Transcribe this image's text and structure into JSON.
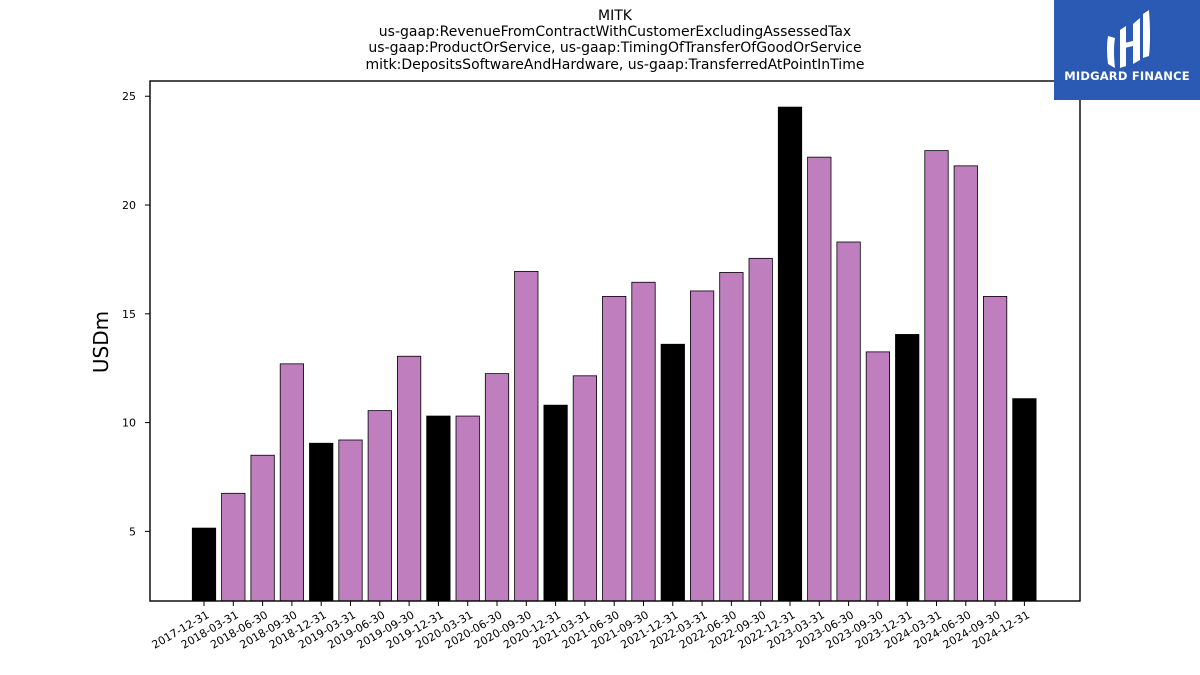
{
  "brand": {
    "name": "MIDGARD FINANCE",
    "background_color": "#2a5ab3",
    "icon": "midgard-logo-icon"
  },
  "colors": {
    "highlight_bar": "#000000",
    "regular_bar": "#bf7fbf",
    "bar_edge": "#000000"
  },
  "chart_data": {
    "type": "bar",
    "title": [
      "MITK",
      "us-gaap:RevenueFromContractWithCustomerExcludingAssessedTax",
      "us-gaap:ProductOrService, us-gaap:TimingOfTransferOfGoodOrService",
      "mitk:DepositsSoftwareAndHardware, us-gaap:TransferredAtPointInTime"
    ],
    "xlabel": "",
    "ylabel": "USDm",
    "ylim": [
      1.8,
      25.7
    ],
    "yticks": [
      5,
      10,
      15,
      20,
      25
    ],
    "grid": false,
    "categories": [
      "2017-12-31",
      "2018-03-31",
      "2018-06-30",
      "2018-09-30",
      "2018-12-31",
      "2019-03-31",
      "2019-06-30",
      "2019-09-30",
      "2019-12-31",
      "2020-03-31",
      "2020-06-30",
      "2020-09-30",
      "2020-12-31",
      "2021-03-31",
      "2021-06-30",
      "2021-09-30",
      "2021-12-31",
      "2022-03-31",
      "2022-06-30",
      "2022-09-30",
      "2022-12-31",
      "2023-03-31",
      "2023-06-30",
      "2023-09-30",
      "2023-12-31",
      "2024-03-31",
      "2024-06-30",
      "2024-09-30",
      "2024-12-31"
    ],
    "values": [
      5.15,
      6.75,
      8.5,
      12.7,
      9.05,
      9.2,
      10.55,
      13.05,
      10.3,
      10.3,
      12.25,
      16.95,
      10.8,
      12.15,
      15.8,
      16.45,
      13.6,
      16.05,
      16.9,
      17.55,
      24.5,
      22.2,
      18.3,
      13.25,
      14.05,
      22.5,
      21.8,
      15.8,
      11.1
    ],
    "highlight": [
      true,
      false,
      false,
      false,
      true,
      false,
      false,
      false,
      true,
      false,
      false,
      false,
      true,
      false,
      false,
      false,
      true,
      false,
      false,
      false,
      true,
      false,
      false,
      false,
      true,
      false,
      false,
      false,
      true
    ]
  }
}
